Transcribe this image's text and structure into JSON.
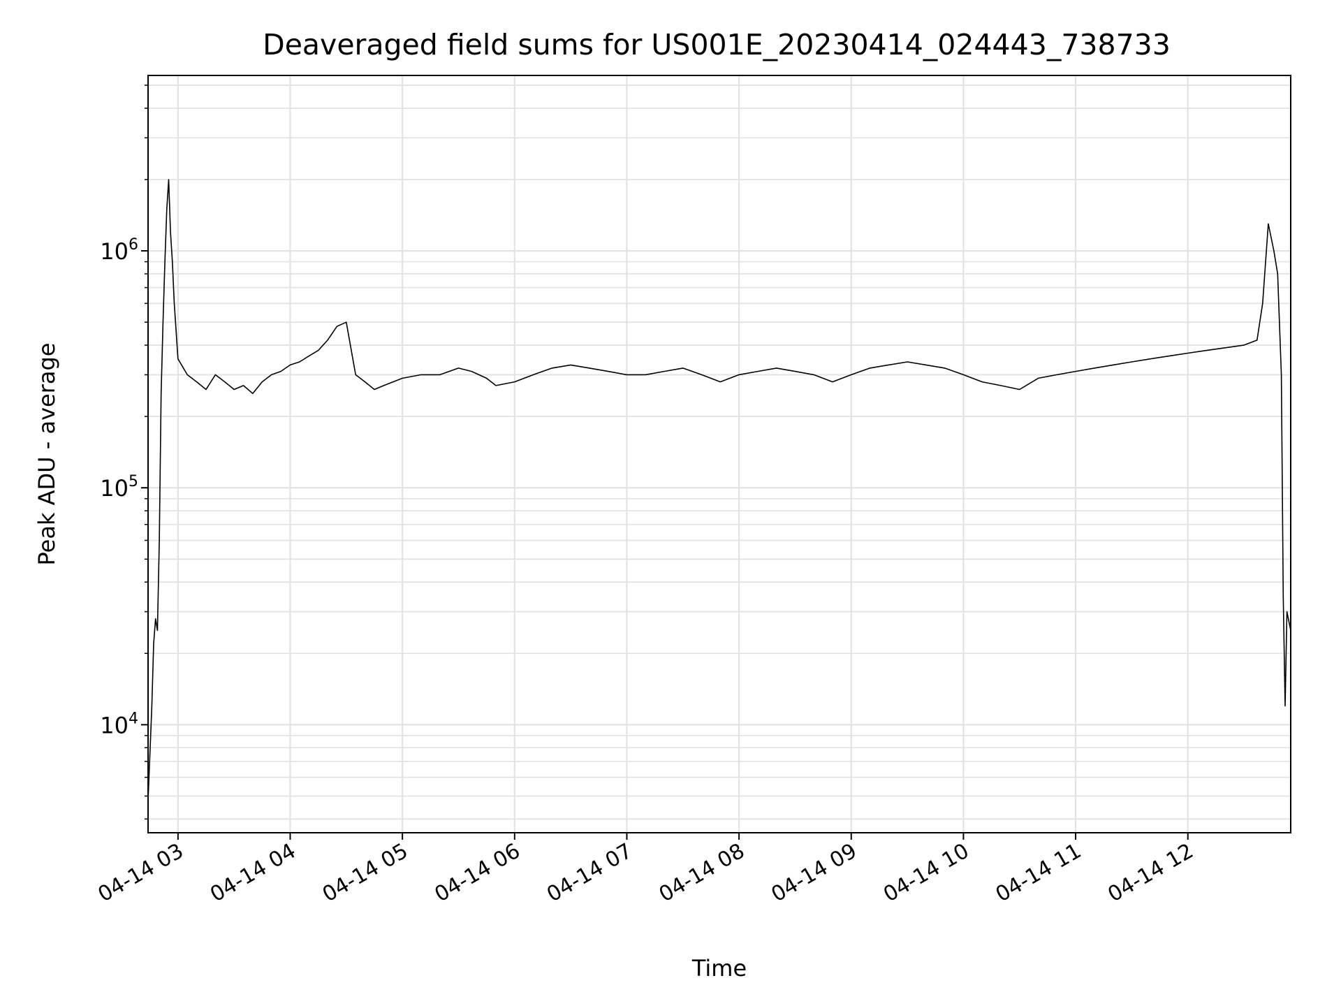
{
  "chart_data": {
    "type": "line",
    "title": "Deaveraged field sums for US001E_20230414_024443_738733",
    "xlabel": "Time",
    "ylabel": "Peak ADU - average",
    "yscale": "log",
    "ylim": [
      3500,
      5500000
    ],
    "xlim": [
      "2023-04-14 02:44",
      "2023-04-14 12:55"
    ],
    "grid": true,
    "line_color": "#000000",
    "x_ticks": [
      {
        "label": "04-14 03",
        "time": "2023-04-14 03:00"
      },
      {
        "label": "04-14 04",
        "time": "2023-04-14 04:00"
      },
      {
        "label": "04-14 05",
        "time": "2023-04-14 05:00"
      },
      {
        "label": "04-14 06",
        "time": "2023-04-14 06:00"
      },
      {
        "label": "04-14 07",
        "time": "2023-04-14 07:00"
      },
      {
        "label": "04-14 08",
        "time": "2023-04-14 08:00"
      },
      {
        "label": "04-14 09",
        "time": "2023-04-14 09:00"
      },
      {
        "label": "04-14 10",
        "time": "2023-04-14 10:00"
      },
      {
        "label": "04-14 11",
        "time": "2023-04-14 11:00"
      },
      {
        "label": "04-14 12",
        "time": "2023-04-14 12:00"
      }
    ],
    "y_ticks": [
      {
        "base": "10",
        "exp": "4",
        "value": 10000
      },
      {
        "base": "10",
        "exp": "5",
        "value": 100000
      },
      {
        "base": "10",
        "exp": "6",
        "value": 1000000
      }
    ],
    "series": [
      {
        "x": [
          "02:44",
          "02:46",
          "02:47",
          "02:48",
          "02:49",
          "02:50",
          "02:51",
          "02:52",
          "02:53",
          "02:54",
          "02:55",
          "02:56",
          "02:57",
          "02:58",
          "03:00",
          "03:05",
          "03:10",
          "03:15",
          "03:20",
          "03:25",
          "03:30",
          "03:35",
          "03:40",
          "03:45",
          "03:50",
          "03:55",
          "04:00",
          "04:05",
          "04:10",
          "04:15",
          "04:20",
          "04:25",
          "04:30",
          "04:35",
          "04:40",
          "04:45",
          "04:50",
          "04:55",
          "05:00",
          "05:10",
          "05:20",
          "05:30",
          "05:37",
          "05:45",
          "05:50",
          "06:00",
          "06:10",
          "06:20",
          "06:30",
          "06:40",
          "06:50",
          "07:00",
          "07:10",
          "07:20",
          "07:30",
          "07:40",
          "07:50",
          "08:00",
          "08:10",
          "08:20",
          "08:30",
          "08:40",
          "08:50",
          "09:00",
          "09:10",
          "09:20",
          "09:30",
          "09:40",
          "09:50",
          "10:00",
          "10:10",
          "10:20",
          "10:30",
          "10:40",
          "10:50",
          "11:00",
          "11:10",
          "11:20",
          "11:30",
          "11:40",
          "11:50",
          "12:00",
          "12:10",
          "12:20",
          "12:30",
          "12:37",
          "12:40",
          "12:43",
          "12:46",
          "12:48",
          "12:50",
          "12:51",
          "12:52",
          "12:53",
          "12:55"
        ],
        "y": [
          4800,
          12000,
          22000,
          28000,
          25000,
          60000,
          250000,
          500000,
          900000,
          1500000,
          2000000,
          1200000,
          900000,
          600000,
          350000,
          300000,
          280000,
          260000,
          300000,
          280000,
          260000,
          270000,
          250000,
          280000,
          300000,
          310000,
          330000,
          340000,
          360000,
          380000,
          420000,
          480000,
          500000,
          300000,
          280000,
          260000,
          270000,
          280000,
          290000,
          300000,
          300000,
          320000,
          310000,
          290000,
          270000,
          280000,
          300000,
          320000,
          330000,
          320000,
          310000,
          300000,
          300000,
          310000,
          320000,
          300000,
          280000,
          300000,
          310000,
          320000,
          310000,
          300000,
          280000,
          300000,
          320000,
          330000,
          340000,
          330000,
          320000,
          300000,
          280000,
          270000,
          260000,
          290000,
          300000,
          310000,
          320000,
          330000,
          340000,
          350000,
          360000,
          370000,
          380000,
          390000,
          400000,
          420000,
          600000,
          1300000,
          1000000,
          800000,
          300000,
          35000,
          12000,
          30000,
          25000
        ]
      }
    ]
  }
}
